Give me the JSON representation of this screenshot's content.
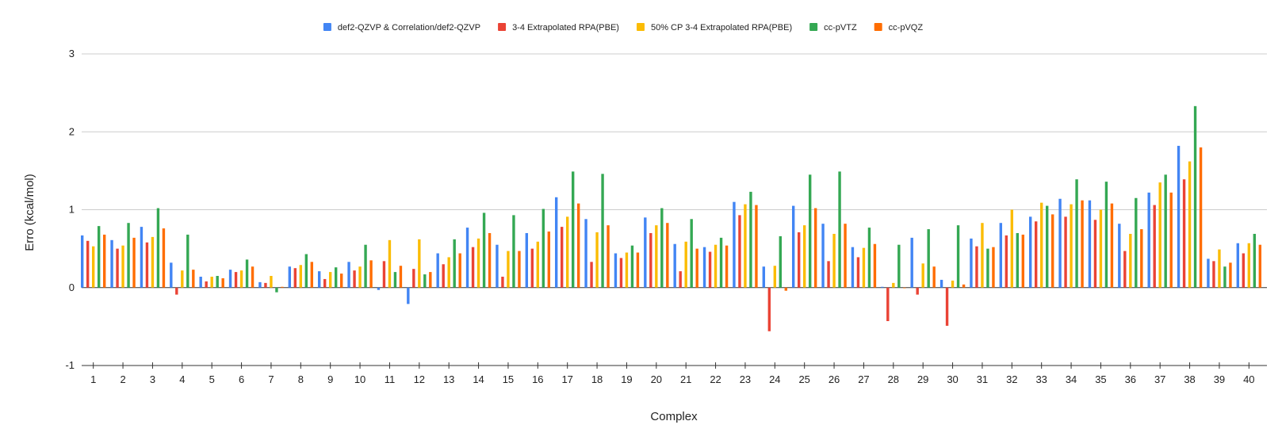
{
  "chart_data": {
    "type": "bar",
    "title": "",
    "xlabel": "Complex",
    "ylabel": "Erro (kcal/mol)",
    "ylim": [
      -1,
      3
    ],
    "yticks": [
      "-1",
      "0",
      "1",
      "2",
      "3"
    ],
    "grid": true,
    "legend_position": "top",
    "categories": [
      "1",
      "2",
      "3",
      "4",
      "5",
      "6",
      "7",
      "8",
      "9",
      "10",
      "11",
      "12",
      "13",
      "14",
      "15",
      "16",
      "17",
      "18",
      "19",
      "20",
      "21",
      "22",
      "23",
      "24",
      "25",
      "26",
      "27",
      "28",
      "29",
      "30",
      "31",
      "32",
      "33",
      "34",
      "35",
      "36",
      "37",
      "38",
      "39",
      "40"
    ],
    "series": [
      {
        "name": "def2-QZVP & Correlation/def2-QZVP",
        "color": "#4285f4",
        "values": [
          0.67,
          0.61,
          0.78,
          0.32,
          0.14,
          0.23,
          0.07,
          0.27,
          0.21,
          0.33,
          -0.03,
          -0.21,
          0.44,
          0.77,
          0.55,
          0.7,
          1.16,
          0.88,
          0.44,
          0.9,
          0.56,
          0.52,
          1.1,
          0.27,
          1.05,
          0.82,
          0.52,
          0.01,
          0.64,
          0.1,
          0.63,
          0.83,
          0.91,
          1.14,
          1.12,
          0.82,
          1.22,
          1.82,
          0.37,
          0.57
        ]
      },
      {
        "name": "3-4 Extrapolated RPA(PBE)",
        "color": "#ea4335",
        "values": [
          0.6,
          0.5,
          0.58,
          -0.09,
          0.08,
          0.2,
          0.06,
          0.25,
          0.11,
          0.22,
          0.34,
          0.24,
          0.3,
          0.52,
          0.14,
          0.5,
          0.78,
          0.33,
          0.38,
          0.7,
          0.21,
          0.46,
          0.93,
          -0.56,
          0.71,
          0.34,
          0.39,
          -0.43,
          -0.09,
          -0.49,
          0.53,
          0.67,
          0.85,
          0.91,
          0.87,
          0.47,
          1.06,
          1.39,
          0.34,
          0.44
        ]
      },
      {
        "name": "50% CP 3-4 Extrapolated RPA(PBE)",
        "color": "#fbbc04",
        "values": [
          0.53,
          0.54,
          0.65,
          0.22,
          0.14,
          0.22,
          0.15,
          0.29,
          0.2,
          0.27,
          0.61,
          0.62,
          0.39,
          0.63,
          0.47,
          0.59,
          0.91,
          0.71,
          0.45,
          0.8,
          0.59,
          0.55,
          1.07,
          0.28,
          0.8,
          0.69,
          0.51,
          0.06,
          0.31,
          0.09,
          0.83,
          1.0,
          1.09,
          1.07,
          1.0,
          0.69,
          1.35,
          1.62,
          0.49,
          0.57
        ]
      },
      {
        "name": "cc-pVTZ",
        "color": "#34a853",
        "values": [
          0.79,
          0.83,
          1.02,
          0.68,
          0.15,
          0.36,
          -0.06,
          0.43,
          0.26,
          0.55,
          0.2,
          0.17,
          0.62,
          0.96,
          0.93,
          1.01,
          1.49,
          1.46,
          0.54,
          1.02,
          0.88,
          0.64,
          1.23,
          0.66,
          1.45,
          1.49,
          0.77,
          0.55,
          0.75,
          0.8,
          0.5,
          0.7,
          1.05,
          1.39,
          1.36,
          1.15,
          1.45,
          2.33,
          0.27,
          0.69
        ]
      },
      {
        "name": "cc-pVQZ",
        "color": "#ff6d01",
        "values": [
          0.68,
          0.64,
          0.76,
          0.23,
          0.12,
          0.27,
          0.01,
          0.33,
          0.18,
          0.35,
          0.28,
          0.2,
          0.44,
          0.7,
          0.47,
          0.72,
          1.08,
          0.8,
          0.45,
          0.83,
          0.5,
          0.54,
          1.06,
          -0.04,
          1.02,
          0.82,
          0.56,
          0.0,
          0.27,
          0.04,
          0.52,
          0.68,
          0.94,
          1.12,
          1.08,
          0.75,
          1.22,
          1.8,
          0.32,
          0.55
        ]
      }
    ]
  }
}
